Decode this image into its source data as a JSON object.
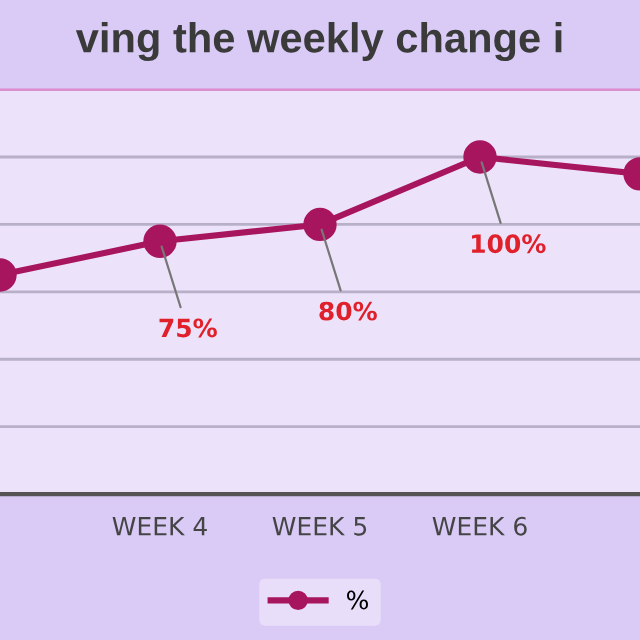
{
  "chart_data": {
    "type": "line",
    "title": "ving the weekly change i",
    "categories": [
      null,
      "WEEK 4",
      "WEEK 5",
      "WEEK 6",
      null
    ],
    "series": [
      {
        "name": "%",
        "color": "#a8155f",
        "values": [
          65,
          75,
          80,
          100,
          95
        ],
        "value_labels": [
          null,
          "75%",
          "80%",
          "100%",
          null
        ]
      }
    ],
    "ylim": [
      0,
      120
    ],
    "yticks": [
      {
        "value": 0,
        "label": null
      },
      {
        "value": 20,
        "label": null
      },
      {
        "value": 40,
        "label": null
      },
      {
        "value": 60,
        "label": null
      },
      {
        "value": 80,
        "label": null
      },
      {
        "value": 100,
        "label": null
      },
      {
        "value": 120,
        "label": null
      }
    ],
    "tick_labels": "x",
    "grid": "y",
    "legend": "bottom",
    "marker": "circle",
    "line_style": "solid"
  }
}
